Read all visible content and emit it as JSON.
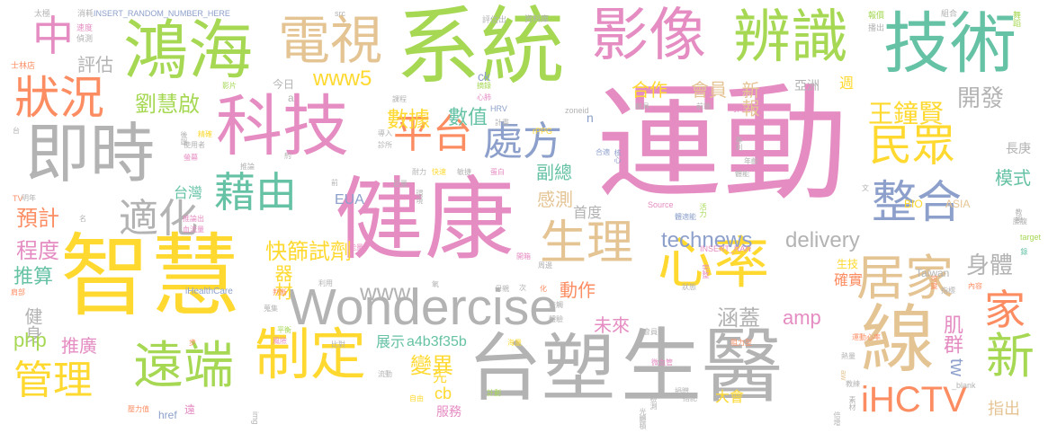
{
  "palette": {
    "pink": "#e58cc2",
    "green": "#a6d854",
    "tan": "#e5c494",
    "gray": "#b3b3b3",
    "yellow": "#ffd92f",
    "orange": "#fc8d62",
    "teal": "#66c2a5",
    "blue": "#8da0cb"
  },
  "words": [
    {
      "text": "運動",
      "color": "pink"
    },
    {
      "text": "系統",
      "color": "green"
    },
    {
      "text": "健康",
      "color": "pink"
    },
    {
      "text": "智慧",
      "color": "yellow"
    },
    {
      "text": "台塑",
      "color": "gray"
    },
    {
      "text": "生醫",
      "color": "gray"
    },
    {
      "text": "鴻海",
      "color": "green"
    },
    {
      "text": "電視",
      "color": "tan"
    },
    {
      "text": "影像",
      "color": "pink"
    },
    {
      "text": "辨識",
      "color": "green"
    },
    {
      "text": "技術",
      "color": "teal"
    },
    {
      "text": "科技",
      "color": "pink"
    },
    {
      "text": "即時",
      "color": "gray"
    },
    {
      "text": "Wondercise",
      "color": "gray"
    },
    {
      "text": "心率",
      "color": "yellow"
    },
    {
      "text": "線",
      "color": "tan"
    },
    {
      "text": "制定",
      "color": "yellow"
    },
    {
      "text": "遠端",
      "color": "green"
    },
    {
      "text": "管理",
      "color": "yellow"
    },
    {
      "text": "生理",
      "color": "tan"
    },
    {
      "text": "居家",
      "color": "tan"
    },
    {
      "text": "狀況",
      "color": "orange"
    },
    {
      "text": "中",
      "color": "pink"
    },
    {
      "text": "平台",
      "color": "orange"
    },
    {
      "text": "處方",
      "color": "blue"
    },
    {
      "text": "民眾",
      "color": "yellow"
    },
    {
      "text": "整合",
      "color": "blue"
    },
    {
      "text": "藉由",
      "color": "teal"
    },
    {
      "text": "適化",
      "color": "gray"
    },
    {
      "text": "家",
      "color": "orange"
    },
    {
      "text": "新",
      "color": "green"
    },
    {
      "text": "iHCTV",
      "color": "orange"
    },
    {
      "text": "劉慧啟",
      "color": "green"
    },
    {
      "text": "王鐘賢",
      "color": "yellow"
    },
    {
      "text": "評估",
      "color": "gray"
    },
    {
      "text": "www5",
      "color": "yellow"
    },
    {
      "text": "合作",
      "color": "yellow"
    },
    {
      "text": "會員",
      "color": "tan"
    },
    {
      "text": "新報",
      "color": "tan"
    },
    {
      "text": "開發",
      "color": "gray"
    },
    {
      "text": "數據",
      "color": "yellow"
    },
    {
      "text": "數值",
      "color": "teal"
    },
    {
      "text": "technews",
      "color": "blue"
    },
    {
      "text": "delivery",
      "color": "gray"
    },
    {
      "text": "www",
      "color": "gray"
    },
    {
      "text": "快篩試劑",
      "color": "yellow"
    },
    {
      "text": "器材",
      "color": "yellow"
    },
    {
      "text": "身體",
      "color": "gray"
    },
    {
      "text": "副總",
      "color": "teal"
    },
    {
      "text": "感測",
      "color": "tan"
    },
    {
      "text": "模式",
      "color": "teal"
    },
    {
      "text": "預計",
      "color": "orange"
    },
    {
      "text": "台灣",
      "color": "teal"
    },
    {
      "text": "EUA",
      "color": "blue"
    },
    {
      "text": "首度",
      "color": "gray"
    },
    {
      "text": "推算",
      "color": "teal"
    },
    {
      "text": "程度",
      "color": "pink"
    },
    {
      "text": "健身",
      "color": "gray"
    },
    {
      "text": "php",
      "color": "green"
    },
    {
      "text": "推廣",
      "color": "pink"
    },
    {
      "text": "肌群",
      "color": "pink"
    },
    {
      "text": "涵蓋",
      "color": "gray"
    },
    {
      "text": "amp",
      "color": "pink"
    },
    {
      "text": "未來",
      "color": "pink"
    },
    {
      "text": "動作",
      "color": "orange"
    },
    {
      "text": "變異",
      "color": "yellow"
    },
    {
      "text": "展示",
      "color": "teal"
    },
    {
      "text": "a4b3f35b",
      "color": "teal"
    },
    {
      "text": "cb",
      "color": "yellow"
    },
    {
      "text": "先",
      "color": "yellow"
    },
    {
      "text": "服務",
      "color": "pink"
    },
    {
      "text": "href",
      "color": "blue"
    },
    {
      "text": "tw",
      "color": "blue"
    },
    {
      "text": "指出",
      "color": "tan"
    },
    {
      "text": "大會",
      "color": "yellow"
    },
    {
      "text": "BIO",
      "color": "yellow"
    },
    {
      "text": "ASIA",
      "color": "tan"
    },
    {
      "text": "Taiwan",
      "color": "gray"
    },
    {
      "text": "確實",
      "color": "orange"
    },
    {
      "text": "生技",
      "color": "yellow"
    },
    {
      "text": "週",
      "color": "yellow"
    },
    {
      "text": "亞洲",
      "color": "gray"
    },
    {
      "text": "長庚",
      "color": "gray"
    },
    {
      "text": "今日",
      "color": "gray"
    },
    {
      "text": "a",
      "color": "gray"
    },
    {
      "text": "n",
      "color": "blue"
    },
    {
      "text": "ck",
      "color": "blue"
    },
    {
      "text": "遠",
      "color": "pink"
    },
    {
      "text": "iHealthCare",
      "color": "blue"
    },
    {
      "text": "INSERT_RANDOM_NUMBER_HERE",
      "color": "blue"
    },
    {
      "text": "INSERT_RAN",
      "color": "pink"
    },
    {
      "text": "Source",
      "color": "pink"
    },
    {
      "text": "zoneid",
      "color": "gray"
    },
    {
      "text": "HRV",
      "color": "blue"
    },
    {
      "text": "rPPG",
      "color": "yellow"
    },
    {
      "text": "src",
      "color": "gray"
    },
    {
      "text": "TV",
      "color": "orange"
    },
    {
      "text": "target",
      "color": "green"
    },
    {
      "text": "img",
      "color": "gray"
    },
    {
      "text": "_blank",
      "color": "gray"
    },
    {
      "text": "aw",
      "color": "tan"
    },
    {
      "text": "太極",
      "color": "gray"
    },
    {
      "text": "消耗",
      "color": "gray"
    },
    {
      "text": "速度",
      "color": "pink"
    },
    {
      "text": "偵測",
      "color": "gray"
    },
    {
      "text": "評估出",
      "color": "gray"
    },
    {
      "text": "資料庫",
      "color": "gray"
    },
    {
      "text": "報價",
      "color": "green"
    },
    {
      "text": "播出",
      "color": "gray"
    },
    {
      "text": "組合",
      "color": "gray"
    },
    {
      "text": "舞蹈",
      "color": "green"
    },
    {
      "text": "士林店",
      "color": "orange"
    },
    {
      "text": "心肺",
      "color": "pink"
    },
    {
      "text": "摘錄",
      "color": "green"
    },
    {
      "text": "載具",
      "color": "gray"
    },
    {
      "text": "前端",
      "color": "gray"
    },
    {
      "text": "引擎",
      "color": "pink"
    },
    {
      "text": "計畫",
      "color": "gray"
    },
    {
      "text": "課程",
      "color": "gray"
    },
    {
      "text": "影片",
      "color": "green"
    },
    {
      "text": "診所",
      "color": "gray"
    },
    {
      "text": "導入",
      "color": "gray"
    },
    {
      "text": "合適",
      "color": "blue"
    },
    {
      "text": "核心",
      "color": "blue"
    },
    {
      "text": "專利",
      "color": "gray"
    },
    {
      "text": "年齡",
      "color": "gray"
    },
    {
      "text": "體能",
      "color": "gray"
    },
    {
      "text": "後端",
      "color": "gray"
    },
    {
      "text": "精確",
      "color": "yellow"
    },
    {
      "text": "使用者",
      "color": "gray"
    },
    {
      "text": "推論",
      "color": "gray"
    },
    {
      "text": "螢幕",
      "color": "pink"
    },
    {
      "text": "快速",
      "color": "yellow"
    },
    {
      "text": "耐力",
      "color": "gray"
    },
    {
      "text": "敏捷",
      "color": "gray"
    },
    {
      "text": "蛋白",
      "color": "pink"
    },
    {
      "text": "巨量",
      "color": "gray"
    },
    {
      "text": "環境",
      "color": "gray"
    },
    {
      "text": "推論出",
      "color": "pink"
    },
    {
      "text": "血流量",
      "color": "pink"
    },
    {
      "text": "活力",
      "color": "green"
    },
    {
      "text": "體適能",
      "color": "blue"
    },
    {
      "text": "教授",
      "color": "gray"
    },
    {
      "text": "腰腹",
      "color": "gray"
    },
    {
      "text": "能量",
      "color": "pink"
    },
    {
      "text": "判斷",
      "color": "orange"
    },
    {
      "text": "利用",
      "color": "gray"
    },
    {
      "text": "肩部",
      "color": "orange"
    },
    {
      "text": "開箱",
      "color": "pink"
    },
    {
      "text": "周邊",
      "color": "gray"
    },
    {
      "text": "完整",
      "color": "pink"
    },
    {
      "text": "可變",
      "color": "orange"
    },
    {
      "text": "指標",
      "color": "gray"
    },
    {
      "text": "內容",
      "color": "orange"
    },
    {
      "text": "狀態",
      "color": "gray"
    },
    {
      "text": "母親",
      "color": "gray"
    },
    {
      "text": "接觸",
      "color": "gray"
    },
    {
      "text": "蒐集",
      "color": "gray"
    },
    {
      "text": "體驗",
      "color": "gray"
    },
    {
      "text": "平衡",
      "color": "green"
    },
    {
      "text": "風險",
      "color": "pink"
    },
    {
      "text": "比對",
      "color": "gray"
    },
    {
      "text": "會員數",
      "color": "gray"
    },
    {
      "text": "阻力型",
      "color": "orange"
    },
    {
      "text": "運動心率",
      "color": "orange"
    },
    {
      "text": "海量",
      "color": "yellow"
    },
    {
      "text": "微血管",
      "color": "pink"
    },
    {
      "text": "熱量",
      "color": "gray"
    },
    {
      "text": "流動",
      "color": "gray"
    },
    {
      "text": "捐贈",
      "color": "gray"
    },
    {
      "text": "光體積",
      "color": "gray"
    },
    {
      "text": "倍增",
      "color": "gray"
    },
    {
      "text": "壓力值",
      "color": "orange"
    },
    {
      "text": "自由",
      "color": "yellow"
    },
    {
      "text": "計劃",
      "color": "green"
    },
    {
      "text": "檢測",
      "color": "gray"
    },
    {
      "text": "捂記",
      "color": "gray"
    },
    {
      "text": "教練",
      "color": "gray"
    },
    {
      "text": "素材",
      "color": "gray"
    },
    {
      "text": "明年",
      "color": "gray"
    },
    {
      "text": "台",
      "color": "gray"
    },
    {
      "text": "約",
      "color": "gray"
    },
    {
      "text": "前",
      "color": "gray"
    },
    {
      "text": "氧",
      "color": "gray"
    },
    {
      "text": "步",
      "color": "orange"
    },
    {
      "text": "次",
      "color": "gray"
    },
    {
      "text": "化",
      "color": "orange"
    },
    {
      "text": "文",
      "color": "gray"
    },
    {
      "text": "名",
      "color": "gray"
    },
    {
      "text": "錄",
      "color": "teal"
    }
  ]
}
